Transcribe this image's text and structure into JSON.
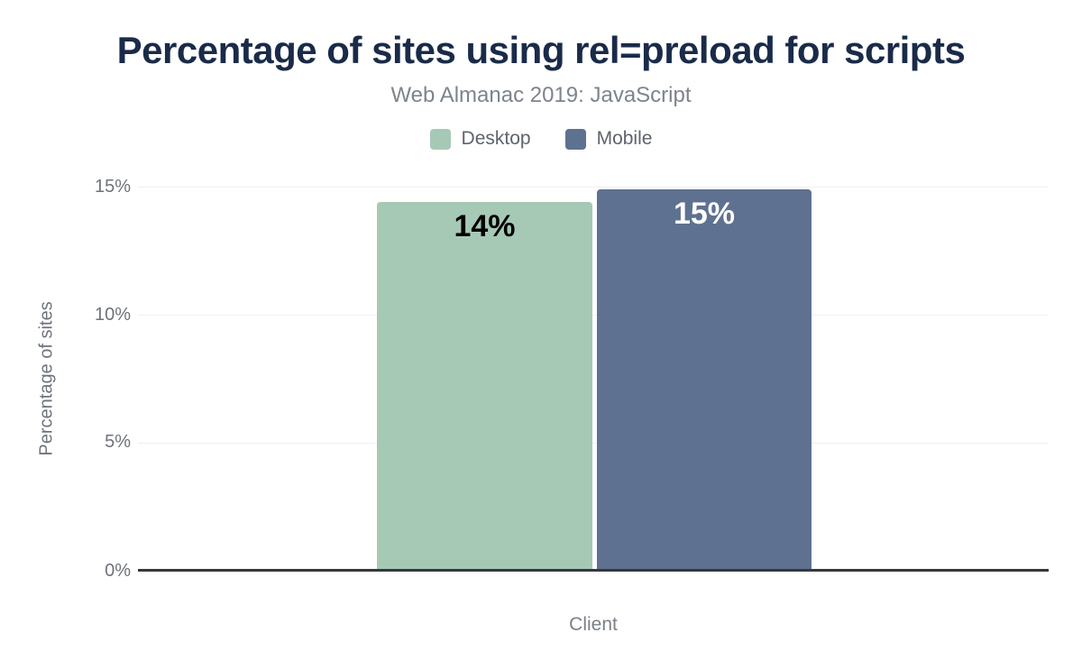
{
  "title": "Percentage of sites using rel=preload for scripts",
  "subtitle": "Web Almanac 2019: JavaScript",
  "legend": [
    {
      "label": "Desktop",
      "color": "#a6c9b6"
    },
    {
      "label": "Mobile",
      "color": "#5f7190"
    }
  ],
  "chart_data": {
    "type": "bar",
    "categories": [
      "Client"
    ],
    "series": [
      {
        "name": "Desktop",
        "value": 14.4,
        "label": "14%",
        "color": "#a6c9b6",
        "label_color": "#000000"
      },
      {
        "name": "Mobile",
        "value": 14.9,
        "label": "15%",
        "color": "#5f7190",
        "label_color": "#ffffff"
      }
    ],
    "title": "Percentage of sites using rel=preload for scripts",
    "subtitle": "Web Almanac 2019: JavaScript",
    "xlabel": "Client",
    "ylabel": "Percentage of sites",
    "ylim": [
      0,
      15
    ],
    "yticks": [
      "0%",
      "5%",
      "10%",
      "15%"
    ],
    "grid": true,
    "legend_position": "top"
  },
  "colors": {
    "title_text": "#1a2b49",
    "subtitle_text": "#7e848c",
    "axis_text": "#6e737b",
    "legend_text": "#5d646d",
    "gridline": "#eef0f3",
    "axis_line": "#36383d",
    "background": "#ffffff"
  }
}
